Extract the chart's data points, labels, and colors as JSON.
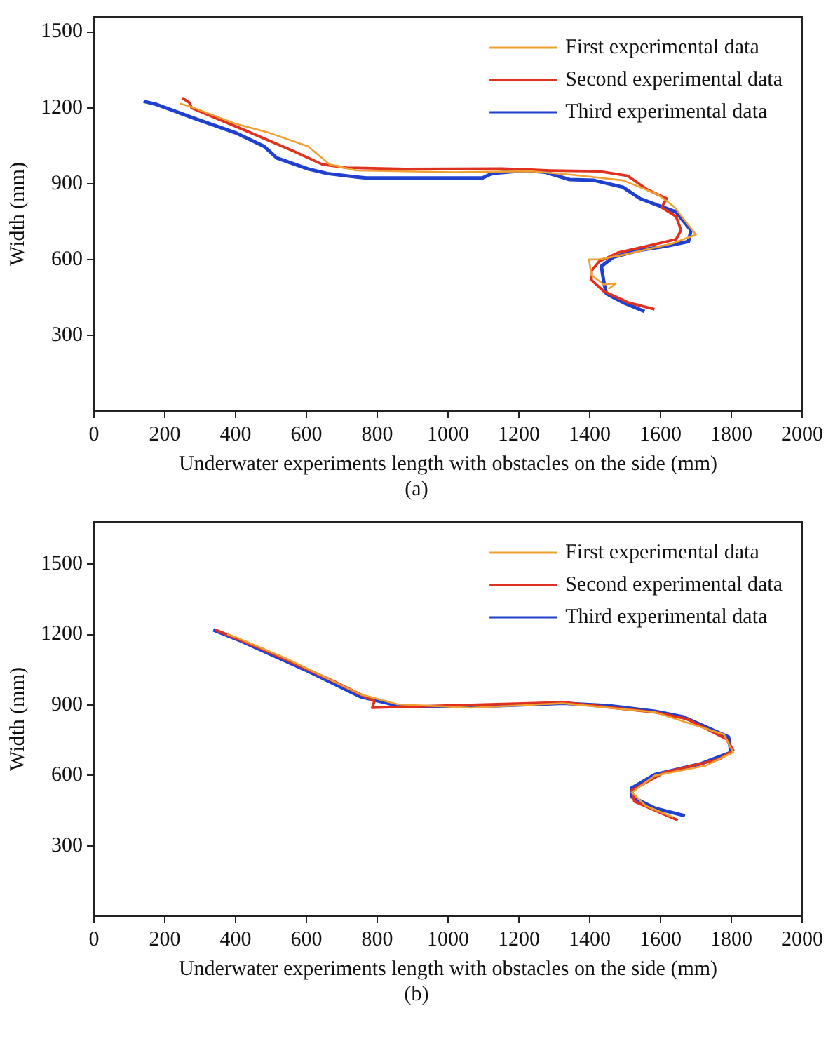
{
  "chart_data": [
    {
      "type": "line",
      "xlabel": "Underwater experiments length with obstacles on the side (mm)",
      "ylabel": "Width (mm)",
      "annotations": [
        "(a)"
      ],
      "xlim": [
        0,
        2000
      ],
      "xticks": [
        0,
        200,
        400,
        600,
        800,
        1000,
        1200,
        1400,
        1600,
        1800,
        2000
      ],
      "ylim": [
        0,
        1560
      ],
      "yticks": [
        300,
        600,
        900,
        1200,
        1500
      ],
      "grid": false,
      "legend": "top right",
      "marker": "none",
      "line_style": "solid",
      "series": [
        {
          "name": "First experimental data",
          "color": "#f0a030",
          "x": [
            242,
            276,
            400,
            495,
            605,
            666,
            741,
            1015,
            1234,
            1357,
            1494,
            1590,
            1638,
            1700,
            1631,
            1494,
            1426,
            1398,
            1405,
            1440,
            1474,
            1453
          ],
          "values": [
            1217,
            1203,
            1137,
            1101,
            1047,
            976,
            952,
            945,
            949,
            934,
            913,
            859,
            809,
            698,
            662,
            618,
            600,
            600,
            537,
            501,
            505,
            483
          ]
        },
        {
          "name": "Second experimental data",
          "color": "#e03020",
          "x": [
            249,
            269,
            276,
            413,
            563,
            645,
            714,
            878,
            1152,
            1289,
            1426,
            1507,
            1562,
            1617,
            1603,
            1644,
            1658,
            1644,
            1562,
            1480,
            1426,
            1405,
            1405,
            1440,
            1508,
            1583
          ],
          "values": [
            1239,
            1221,
            1199,
            1119,
            1029,
            976,
            963,
            958,
            959,
            952,
            949,
            931,
            877,
            841,
            806,
            770,
            716,
            680,
            653,
            627,
            591,
            555,
            519,
            474,
            430,
            403
          ]
        },
        {
          "name": "Third experimental data",
          "color": "#2040d0",
          "x": [
            140,
            175,
            290,
            400,
            481,
            516,
            605,
            659,
            769,
            878,
            1097,
            1124,
            1220,
            1275,
            1343,
            1412,
            1494,
            1542,
            1603,
            1644,
            1686,
            1679,
            1617,
            1535,
            1467,
            1433,
            1440,
            1447,
            1494,
            1555
          ],
          "values": [
            1226,
            1214,
            1155,
            1101,
            1047,
            1002,
            958,
            940,
            922,
            922,
            922,
            940,
            952,
            945,
            916,
            913,
            886,
            841,
            809,
            788,
            716,
            671,
            653,
            635,
            609,
            573,
            510,
            465,
            430,
            394
          ]
        }
      ]
    },
    {
      "type": "line",
      "xlabel": "Underwater experiments length with obstacles on the side (mm)",
      "ylabel": "Width (mm)",
      "annotations": [
        "(b)"
      ],
      "xlim": [
        0,
        2000
      ],
      "xticks": [
        0,
        200,
        400,
        600,
        800,
        1000,
        1200,
        1400,
        1600,
        1800,
        2000
      ],
      "ylim": [
        0,
        1680
      ],
      "yticks": [
        300,
        600,
        900,
        1200,
        1500
      ],
      "grid": false,
      "legend": "top right",
      "marker": "none",
      "line_style": "solid",
      "series": [
        {
          "name": "First experimental data",
          "color": "#f0a030",
          "x": [
            376,
            402,
            544,
            753,
            857,
            1064,
            1324,
            1584,
            1779,
            1805,
            1727,
            1584,
            1519,
            1558,
            1636
          ],
          "values": [
            1201,
            1188,
            1097,
            945,
            903,
            888,
            907,
            869,
            774,
            698,
            641,
            599,
            527,
            470,
            422
          ]
        },
        {
          "name": "Second experimental data",
          "color": "#e03020",
          "x": [
            343,
            480,
            675,
            792,
            786,
            869,
            1324,
            1584,
            1675,
            1786,
            1805,
            1766,
            1610,
            1519,
            1526,
            1649
          ],
          "values": [
            1220,
            1135,
            1002,
            916,
            888,
            892,
            911,
            869,
            840,
            755,
            707,
            669,
            612,
            536,
            489,
            409
          ]
        },
        {
          "name": "Third experimental data",
          "color": "#2040d0",
          "x": [
            337,
            415,
            610,
            753,
            831,
            869,
            1064,
            1324,
            1454,
            1584,
            1662,
            1792,
            1799,
            1715,
            1584,
            1519,
            1519,
            1584,
            1669
          ],
          "values": [
            1220,
            1173,
            1040,
            935,
            907,
            892,
            892,
            907,
            897,
            873,
            850,
            764,
            698,
            650,
            603,
            546,
            508,
            460,
            428
          ]
        }
      ]
    }
  ]
}
